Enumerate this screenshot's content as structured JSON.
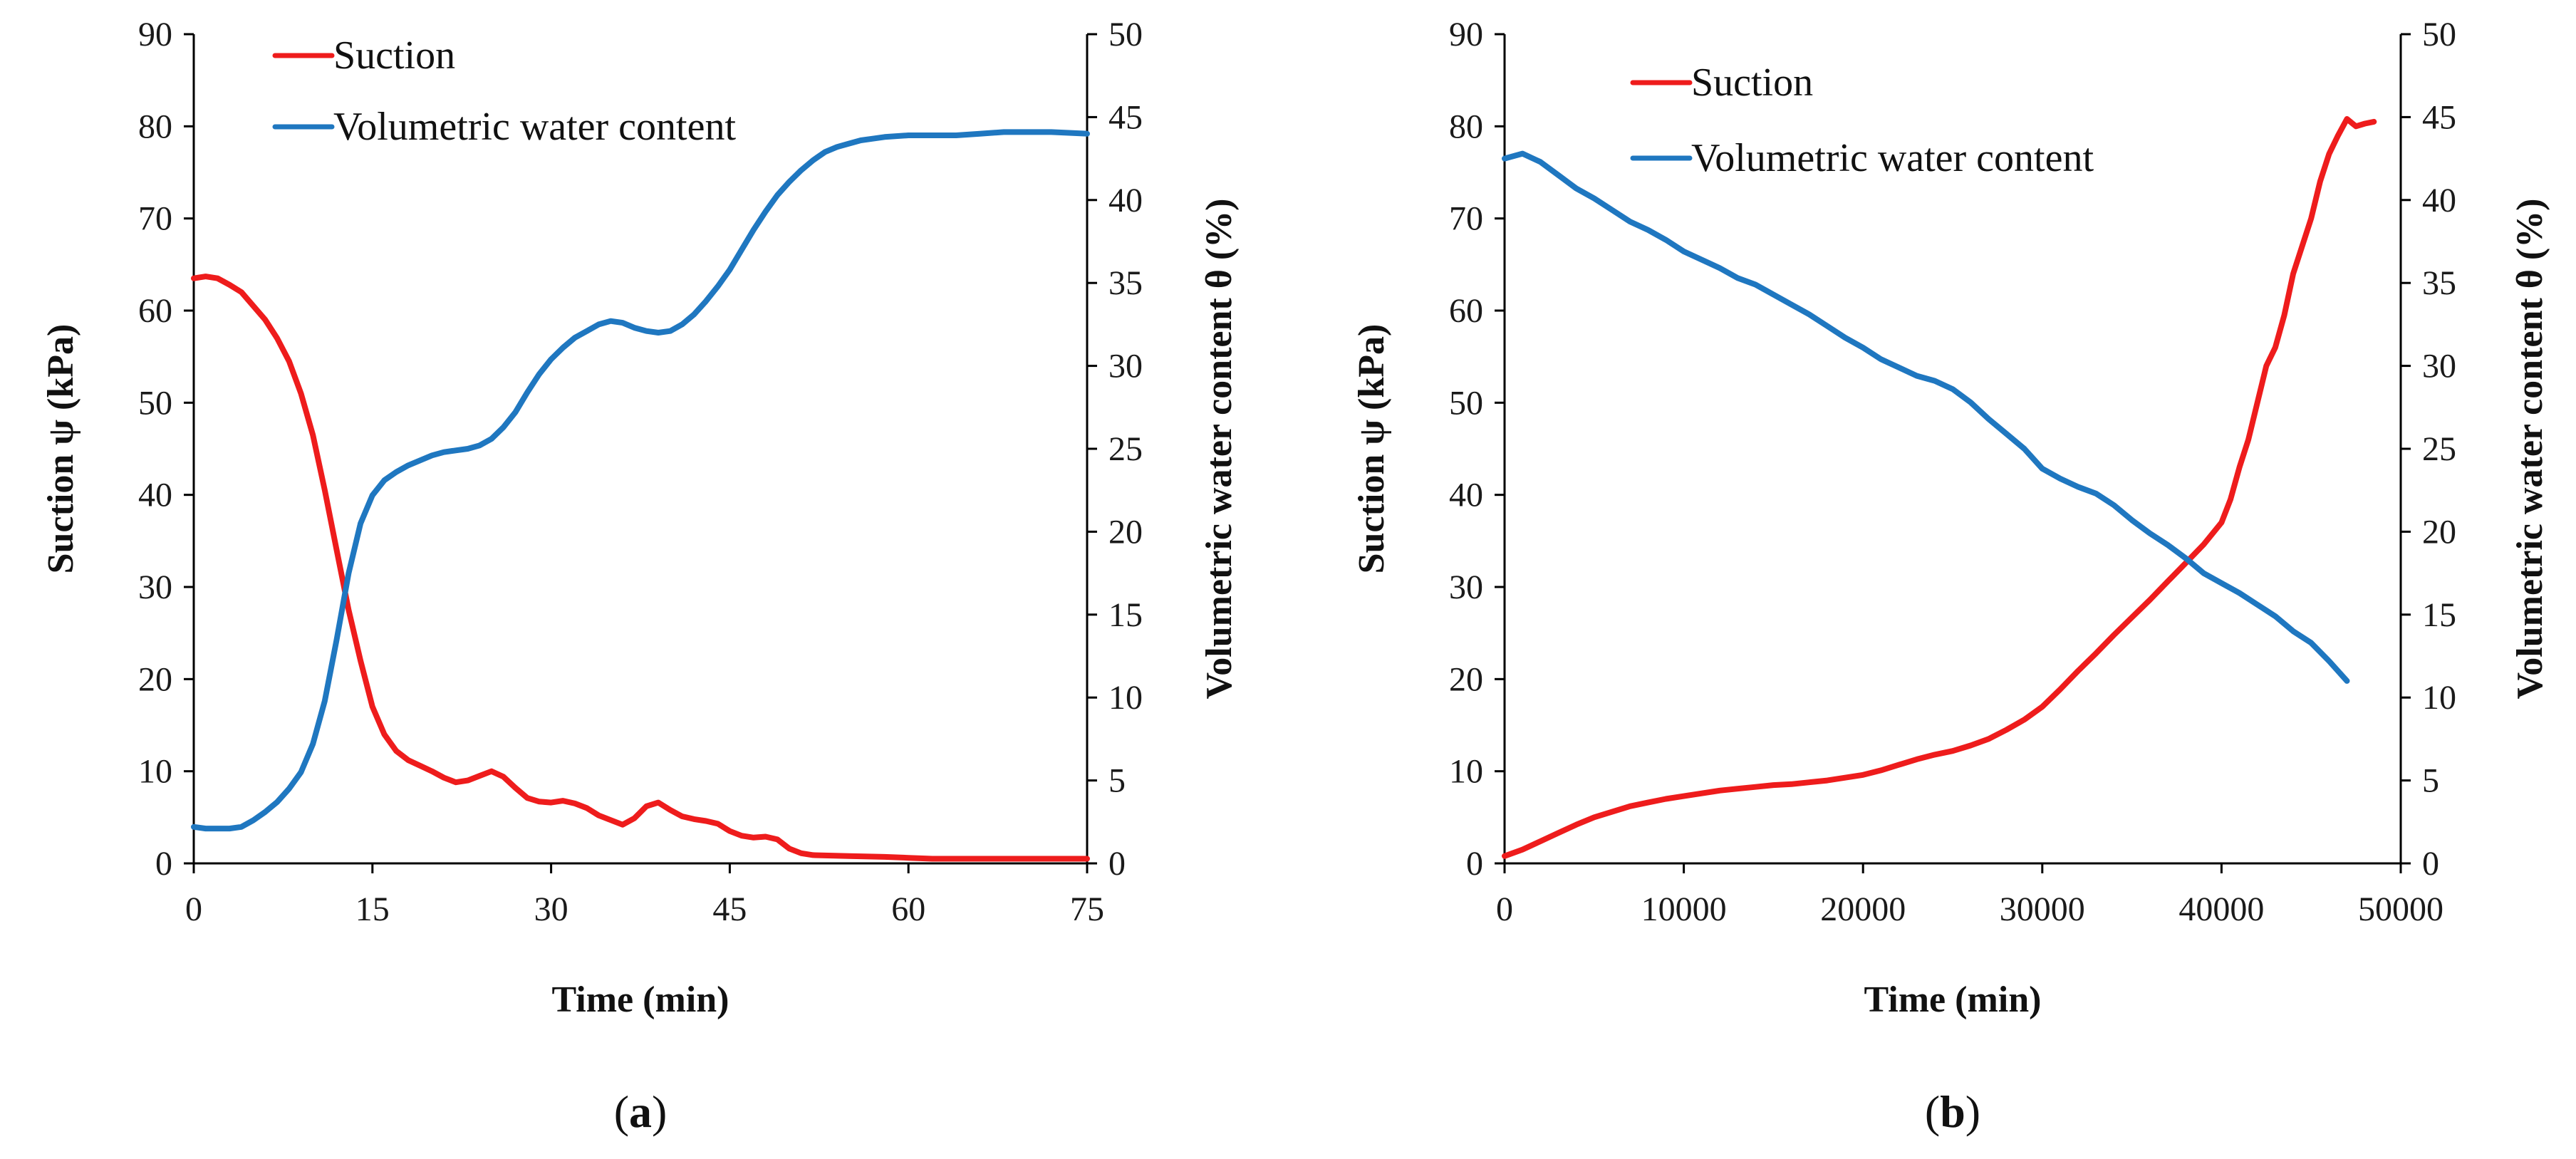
{
  "chart_data": [
    {
      "type": "line",
      "panel": "a",
      "caption": "(a)",
      "caption_letter": "a",
      "xlabel": "Time (min)",
      "ylabel": "Suction ψ (kPa)",
      "y2label": "Volumetric water content θ (%)",
      "xlim": [
        0,
        75
      ],
      "ylim": [
        0,
        90
      ],
      "y2lim": [
        0,
        50
      ],
      "xticks": [
        0,
        15,
        30,
        45,
        60,
        75
      ],
      "yticks": [
        0,
        10,
        20,
        30,
        40,
        50,
        60,
        70,
        80,
        90
      ],
      "y2ticks": [
        0,
        5,
        10,
        15,
        20,
        25,
        30,
        35,
        40,
        45,
        50
      ],
      "legend_position": "top-left",
      "series": [
        {
          "name": "Suction",
          "axis": "left",
          "color": "#ee1c1c",
          "x": [
            0,
            1,
            2,
            3,
            4,
            5,
            6,
            7,
            8,
            9,
            10,
            11,
            12,
            13,
            14,
            15,
            16,
            17,
            18,
            19,
            20,
            21,
            22,
            23,
            24,
            25,
            26,
            27,
            28,
            29,
            30,
            31,
            32,
            33,
            34,
            35,
            36,
            37,
            38,
            39,
            40,
            41,
            42,
            43,
            44,
            45,
            46,
            47,
            48,
            49,
            50,
            51,
            52,
            55,
            58,
            60,
            62,
            65,
            70,
            75
          ],
          "y": [
            63.5,
            63.7,
            63.5,
            62.8,
            62,
            60.5,
            59,
            57,
            54.5,
            51,
            46.5,
            40.5,
            34,
            27.5,
            22,
            17,
            14,
            12.2,
            11.2,
            10.6,
            10,
            9.3,
            8.8,
            9,
            9.5,
            10,
            9.4,
            8.2,
            7.1,
            6.7,
            6.6,
            6.8,
            6.5,
            6,
            5.2,
            4.7,
            4.2,
            4.9,
            6.2,
            6.6,
            5.8,
            5.1,
            4.8,
            4.6,
            4.3,
            3.5,
            3,
            2.8,
            2.9,
            2.6,
            1.6,
            1.1,
            0.9,
            0.8,
            0.7,
            0.6,
            0.5,
            0.5,
            0.5,
            0.5
          ]
        },
        {
          "name": "Volumetric water content",
          "axis": "right",
          "color": "#1f77c0",
          "x": [
            0,
            1,
            2,
            3,
            4,
            5,
            6,
            7,
            8,
            9,
            10,
            11,
            12,
            13,
            14,
            15,
            16,
            17,
            18,
            19,
            20,
            21,
            22,
            23,
            24,
            25,
            26,
            27,
            28,
            29,
            30,
            31,
            32,
            33,
            34,
            35,
            36,
            37,
            38,
            39,
            40,
            41,
            42,
            43,
            44,
            45,
            46,
            47,
            48,
            49,
            50,
            51,
            52,
            53,
            54,
            55,
            56,
            57,
            58,
            60,
            62,
            64,
            66,
            68,
            70,
            72,
            75
          ],
          "y": [
            2.2,
            2.1,
            2.1,
            2.1,
            2.2,
            2.6,
            3.1,
            3.7,
            4.5,
            5.5,
            7.2,
            9.8,
            13.5,
            17.5,
            20.5,
            22.2,
            23.1,
            23.6,
            24,
            24.3,
            24.6,
            24.8,
            24.9,
            25,
            25.2,
            25.6,
            26.3,
            27.2,
            28.4,
            29.5,
            30.4,
            31.1,
            31.7,
            32.1,
            32.5,
            32.7,
            32.6,
            32.3,
            32.1,
            32,
            32.1,
            32.5,
            33.1,
            33.9,
            34.8,
            35.8,
            37,
            38.2,
            39.3,
            40.3,
            41.1,
            41.8,
            42.4,
            42.9,
            43.2,
            43.4,
            43.6,
            43.7,
            43.8,
            43.9,
            43.9,
            43.9,
            44,
            44.1,
            44.1,
            44.1,
            44
          ]
        }
      ]
    },
    {
      "type": "line",
      "panel": "b",
      "caption": "(b)",
      "caption_letter": "b",
      "xlabel": "Time (min)",
      "ylabel": "Suction ψ (kPa)",
      "y2label": "Volumetric water content θ (%)",
      "xlim": [
        0,
        50000
      ],
      "ylim": [
        0,
        90
      ],
      "y2lim": [
        0,
        50
      ],
      "xticks": [
        0,
        10000,
        20000,
        30000,
        40000,
        50000
      ],
      "yticks": [
        0,
        10,
        20,
        30,
        40,
        50,
        60,
        70,
        80,
        90
      ],
      "y2ticks": [
        0,
        5,
        10,
        15,
        20,
        25,
        30,
        35,
        40,
        45,
        50
      ],
      "legend_position": "top-left",
      "series": [
        {
          "name": "Suction",
          "axis": "left",
          "color": "#ee1c1c",
          "x": [
            0,
            1000,
            2000,
            3000,
            4000,
            5000,
            6000,
            7000,
            8000,
            9000,
            10000,
            11000,
            12000,
            13000,
            14000,
            15000,
            16000,
            17000,
            18000,
            19000,
            20000,
            21000,
            22000,
            23000,
            24000,
            25000,
            26000,
            27000,
            28000,
            29000,
            30000,
            31000,
            32000,
            33000,
            34000,
            35000,
            36000,
            37000,
            38000,
            39000,
            40000,
            40500,
            41000,
            41500,
            42000,
            42500,
            43000,
            43500,
            44000,
            44500,
            45000,
            45500,
            46000,
            46500,
            47000,
            47500,
            48000,
            48500
          ],
          "y": [
            0.8,
            1.5,
            2.4,
            3.3,
            4.2,
            5,
            5.6,
            6.2,
            6.6,
            7,
            7.3,
            7.6,
            7.9,
            8.1,
            8.3,
            8.5,
            8.6,
            8.8,
            9,
            9.3,
            9.6,
            10.1,
            10.7,
            11.3,
            11.8,
            12.2,
            12.8,
            13.5,
            14.5,
            15.6,
            17,
            18.9,
            20.9,
            22.8,
            24.8,
            26.7,
            28.6,
            30.6,
            32.6,
            34.6,
            37,
            39.5,
            43,
            46,
            50,
            54,
            56,
            59.5,
            64,
            67,
            70,
            74,
            77,
            79,
            80.8,
            80,
            80.3,
            80.5
          ]
        },
        {
          "name": "Volumetric water content",
          "axis": "right",
          "color": "#1f77c0",
          "x": [
            0,
            1000,
            2000,
            3000,
            4000,
            5000,
            6000,
            7000,
            8000,
            9000,
            10000,
            11000,
            12000,
            13000,
            14000,
            15000,
            16000,
            17000,
            18000,
            19000,
            20000,
            21000,
            22000,
            23000,
            24000,
            25000,
            26000,
            27000,
            28000,
            29000,
            30000,
            31000,
            32000,
            33000,
            34000,
            35000,
            36000,
            37000,
            38000,
            39000,
            40000,
            41000,
            42000,
            43000,
            44000,
            45000,
            46000,
            47000
          ],
          "y": [
            42.5,
            42.8,
            42.3,
            41.5,
            40.7,
            40.1,
            39.4,
            38.7,
            38.2,
            37.6,
            36.9,
            36.4,
            35.9,
            35.3,
            34.9,
            34.3,
            33.7,
            33.1,
            32.4,
            31.7,
            31.1,
            30.4,
            29.9,
            29.4,
            29.1,
            28.6,
            27.8,
            26.8,
            25.9,
            25,
            23.8,
            23.2,
            22.7,
            22.3,
            21.6,
            20.7,
            19.9,
            19.2,
            18.4,
            17.5,
            16.9,
            16.3,
            15.6,
            14.9,
            14,
            13.3,
            12.2,
            11
          ]
        }
      ]
    }
  ]
}
